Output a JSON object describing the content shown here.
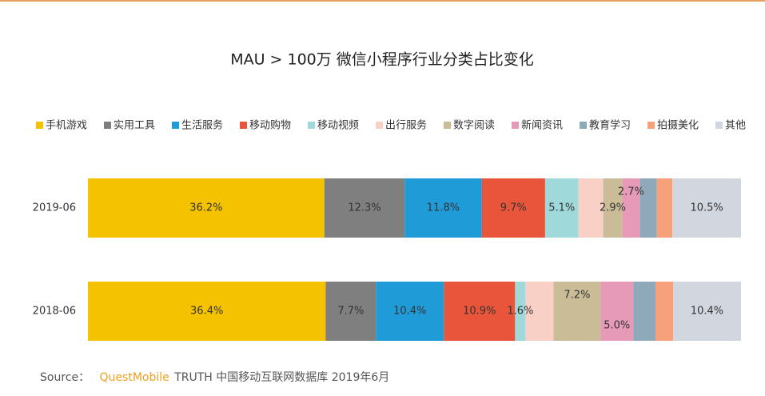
{
  "chart_data": {
    "type": "stacked-bar-horizontal",
    "title": "MAU > 100万 微信小程序行业分类占比变化",
    "categories": [
      "2019-06",
      "2018-06"
    ],
    "xlim": [
      0,
      100
    ],
    "series": [
      {
        "name": "手机游戏",
        "color": "#f5c200",
        "values": [
          36.2,
          36.4
        ],
        "value_labels": [
          "36.2%",
          "36.4%"
        ]
      },
      {
        "name": "实用工具",
        "color": "#7f7f80",
        "values": [
          12.3,
          7.7
        ],
        "value_labels": [
          "12.3%",
          "7.7%"
        ]
      },
      {
        "name": "生活服务",
        "color": "#1f9bd7",
        "values": [
          11.8,
          10.4
        ],
        "value_labels": [
          "11.8%",
          "10.4%"
        ]
      },
      {
        "name": "移动购物",
        "color": "#e8553a",
        "values": [
          9.7,
          10.9
        ],
        "value_labels": [
          "9.7%",
          "10.9%"
        ]
      },
      {
        "name": "移动视频",
        "color": "#9fd9d9",
        "values": [
          5.1,
          1.6
        ],
        "value_labels": [
          "5.1%",
          "1.6%"
        ]
      },
      {
        "name": "出行服务",
        "color": "#f8d0c6",
        "values": [
          3.8,
          4.3
        ],
        "value_labels": [
          null,
          null
        ]
      },
      {
        "name": "数字阅读",
        "color": "#c9bc96",
        "values": [
          2.9,
          7.2
        ],
        "value_labels": [
          "2.9%",
          "7.2%"
        ]
      },
      {
        "name": "新闻资讯",
        "color": "#e79ab8",
        "values": [
          2.7,
          5.0
        ],
        "value_labels": [
          "2.7%",
          "5.0%"
        ]
      },
      {
        "name": "教育学习",
        "color": "#8ea9b9",
        "values": [
          2.6,
          3.4
        ],
        "value_labels": [
          null,
          null
        ]
      },
      {
        "name": "拍摄美化",
        "color": "#f7a17c",
        "values": [
          2.4,
          2.7
        ],
        "value_labels": [
          null,
          null
        ]
      },
      {
        "name": "其他",
        "color": "#d2d6df",
        "values": [
          10.5,
          10.4
        ],
        "value_labels": [
          "10.5%",
          "10.4%"
        ]
      }
    ],
    "source": {
      "prefix": "Source：",
      "brand": "QuestMobile",
      "text": "TRUTH 中国移动互联网数据库 2019年6月"
    }
  }
}
